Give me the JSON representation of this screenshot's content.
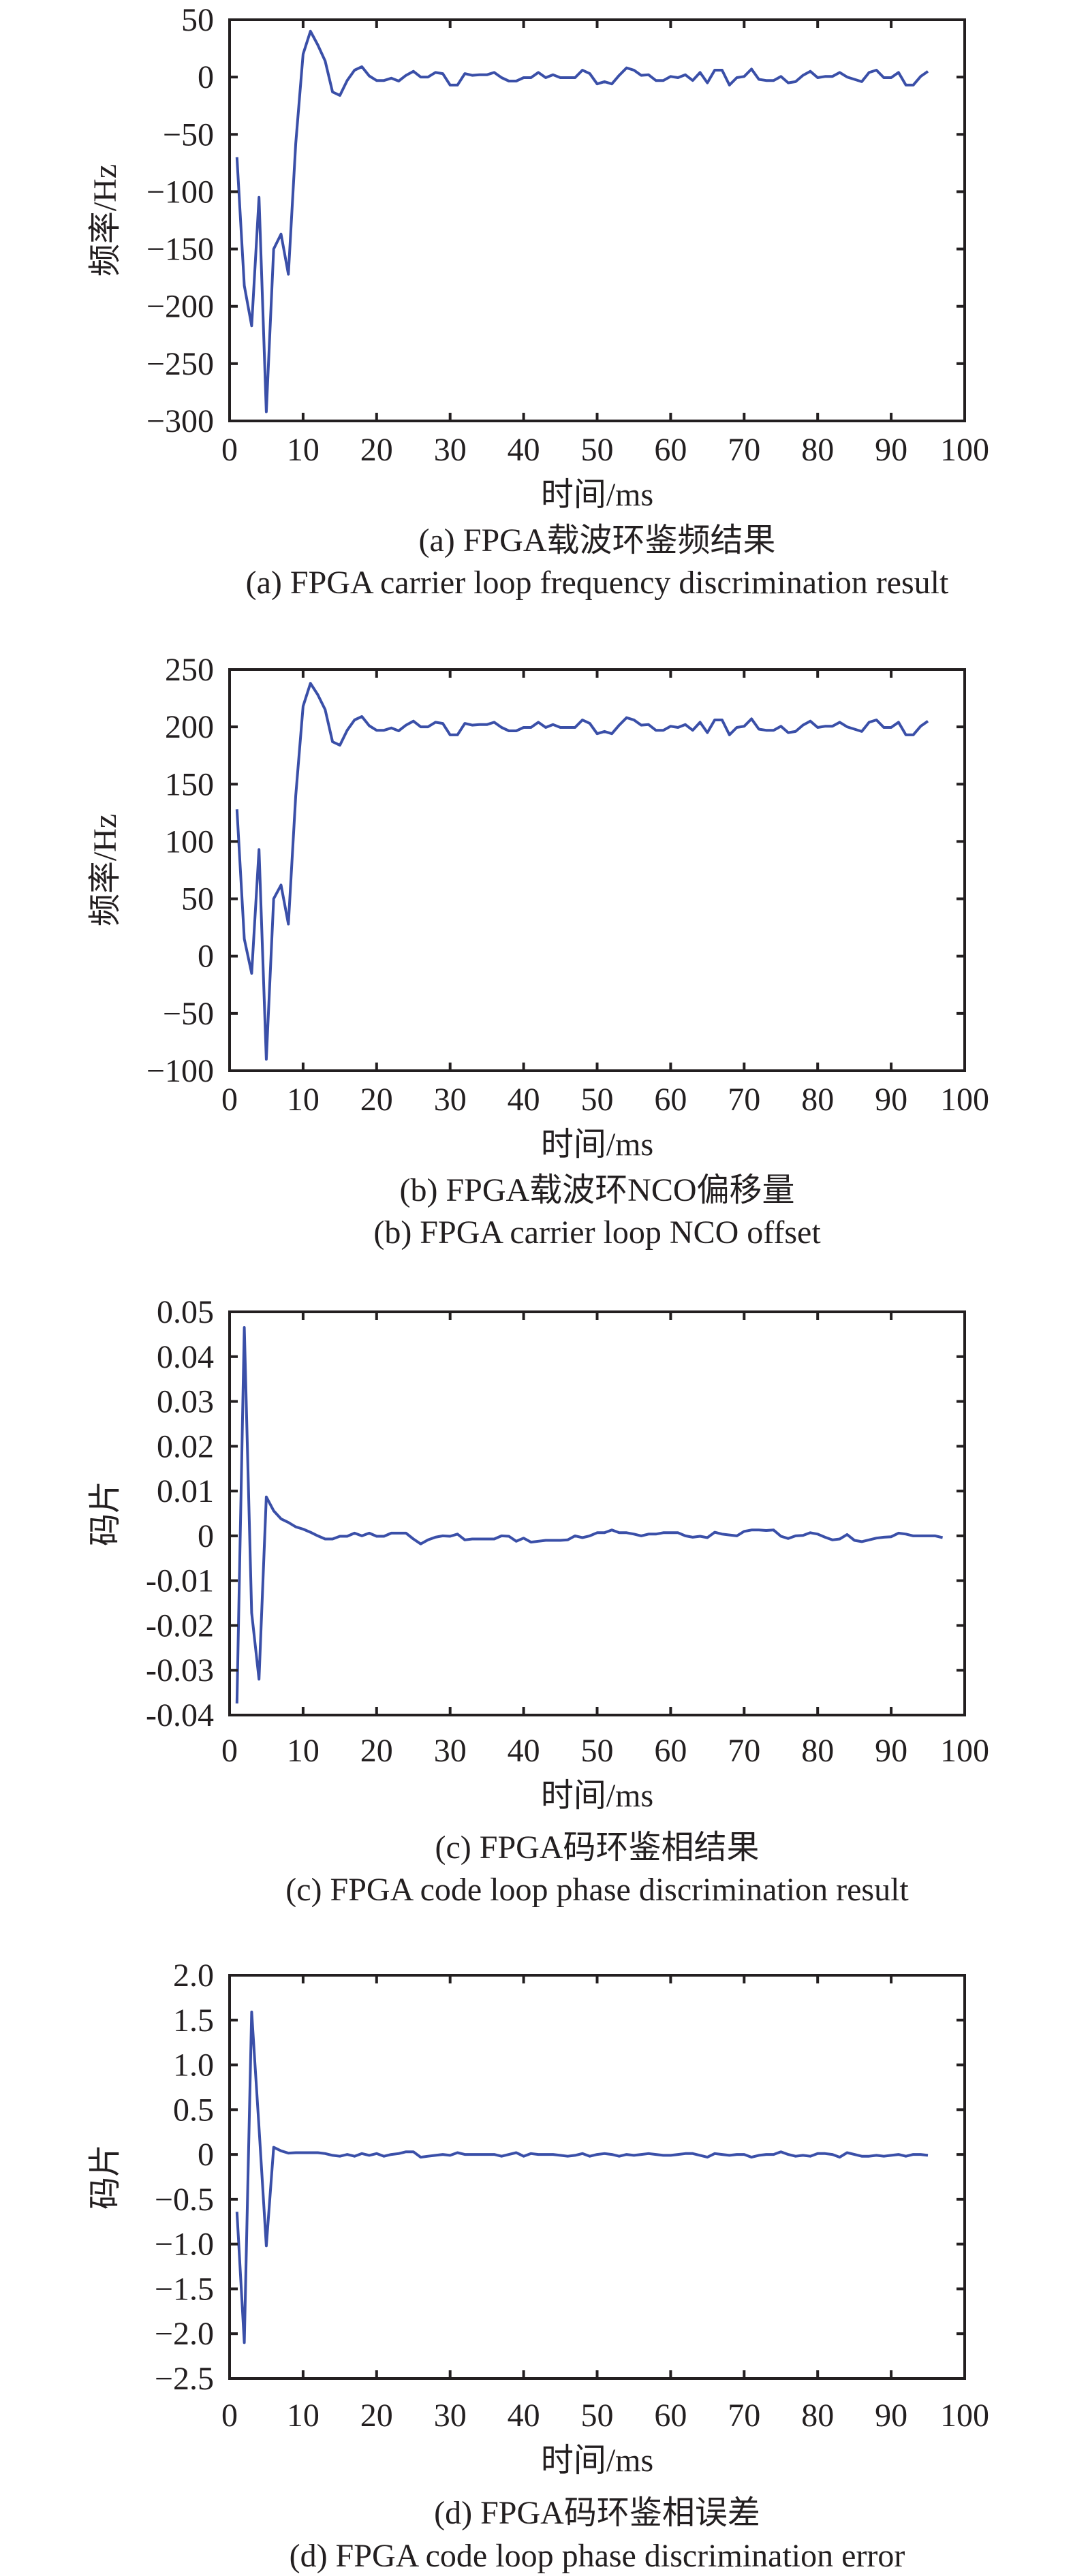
{
  "colors": {
    "line": "#3a4fa8",
    "axis": "#231f20"
  },
  "chart_data": [
    {
      "type": "line",
      "title": "(a) FPGA载波环鉴频结果",
      "title_en": "(a) FPGA carrier loop frequency discrimination result",
      "xlabel": "时间/ms",
      "ylabel": "频率/Hz",
      "xlim": [
        0,
        100
      ],
      "ylim": [
        -300,
        50
      ],
      "xticks": [
        "0",
        "10",
        "20",
        "30",
        "40",
        "50",
        "60",
        "70",
        "80",
        "90",
        "100"
      ],
      "yticks": [
        "50",
        "0",
        "−50",
        "−100",
        "−150",
        "−200",
        "−250",
        "−300"
      ],
      "ytick_values": [
        50,
        0,
        -50,
        -100,
        -150,
        -200,
        -250,
        -300
      ],
      "grid": false,
      "series": [
        {
          "name": "carrier loop frequency discrimination",
          "x_start": 1,
          "x_step": 1,
          "values": [
            -70,
            -182,
            -217,
            -105,
            -292,
            -150,
            -137,
            -172,
            -58,
            20,
            40,
            28,
            14,
            -13,
            -16,
            -3,
            6,
            9,
            1,
            -3,
            -3,
            -1,
            -3.5,
            1.5,
            5,
            0,
            0,
            4,
            3,
            -7,
            -7,
            3,
            1.5,
            2,
            2,
            4,
            -0.5,
            -3.5,
            -3.5,
            -0.5,
            -0.5,
            4,
            -0.5,
            2,
            -0.5,
            -0.5,
            -0.5,
            6,
            3,
            -6,
            -4,
            -6,
            1.5,
            8,
            6,
            1.5,
            2,
            -3,
            -3,
            0.5,
            -0.5,
            2,
            -3,
            4,
            -5,
            6,
            6,
            -7,
            -0.5,
            0.5,
            7,
            -2,
            -3,
            -3,
            0.5,
            -5,
            -4,
            1.5,
            5,
            -0.5,
            0.5,
            0.5,
            4,
            0,
            -2,
            -4,
            4,
            6,
            -0.5,
            -0.5,
            4,
            -7,
            -7,
            0.5,
            5
          ]
        }
      ]
    },
    {
      "type": "line",
      "title": "(b) FPGA载波环NCO偏移量",
      "title_en": "(b) FPGA carrier loop NCO offset",
      "xlabel": "时间/ms",
      "ylabel": "频率/Hz",
      "xlim": [
        0,
        100
      ],
      "ylim": [
        -100,
        250
      ],
      "xticks": [
        "0",
        "10",
        "20",
        "30",
        "40",
        "50",
        "60",
        "70",
        "80",
        "90",
        "100"
      ],
      "yticks": [
        "250",
        "200",
        "150",
        "100",
        "50",
        "0",
        "−50",
        "−100"
      ],
      "ytick_values": [
        250,
        200,
        150,
        100,
        50,
        0,
        -50,
        -100
      ],
      "grid": false,
      "series": [
        {
          "name": "carrier loop NCO offset",
          "x_start": 1,
          "x_step": 1,
          "values": [
            128,
            15,
            -15,
            93,
            -90,
            50,
            62,
            28,
            140,
            218,
            238,
            228,
            215,
            187,
            184,
            197,
            206,
            209,
            201,
            197,
            197,
            199,
            196.5,
            201.5,
            205,
            200,
            200,
            204,
            203,
            193,
            193,
            203,
            201.5,
            202,
            202,
            204,
            199.5,
            196.5,
            196.5,
            199.5,
            199.5,
            204,
            199.5,
            202,
            199.5,
            199.5,
            199.5,
            206,
            203,
            194,
            196,
            194,
            201.5,
            208,
            206,
            201.5,
            202,
            197,
            197,
            200.5,
            199.5,
            202,
            197,
            204,
            195,
            206,
            206,
            193,
            199.5,
            200.5,
            207,
            198,
            197,
            197,
            200.5,
            195,
            196,
            201.5,
            205,
            199.5,
            200.5,
            200.5,
            204,
            200,
            198,
            196,
            204,
            206,
            199.5,
            199.5,
            204,
            193,
            193,
            200.5,
            205
          ]
        }
      ]
    },
    {
      "type": "line",
      "title": "(c) FPGA码环鉴相结果",
      "title_en": "(c) FPGA code loop phase discrimination result",
      "xlabel": "时间/ms",
      "ylabel": "码片",
      "xlim": [
        0,
        100
      ],
      "ylim": [
        -0.04,
        0.05
      ],
      "xticks": [
        "0",
        "10",
        "20",
        "30",
        "40",
        "50",
        "60",
        "70",
        "80",
        "90",
        "100"
      ],
      "yticks": [
        "0.05",
        "0.04",
        "0.03",
        "0.02",
        "0.01",
        "0",
        "-0.01",
        "-0.02",
        "-0.03",
        "-0.04"
      ],
      "ytick_values": [
        0.05,
        0.04,
        0.03,
        0.02,
        0.01,
        0,
        -0.01,
        -0.02,
        -0.03,
        -0.04
      ],
      "grid": false,
      "series": [
        {
          "name": "code loop phase discrimination",
          "x_start": 1,
          "x_step": 1,
          "values": [
            -0.0374,
            0.0465,
            -0.0172,
            -0.032,
            0.0087,
            0.0056,
            0.0038,
            0.003,
            0.002,
            0.0015,
            0.0008,
            0,
            -0.0007,
            -0.0007,
            -0.0001,
            -0.0001,
            0.0006,
            0,
            0.0006,
            -0.0001,
            -0.0001,
            0.0006,
            0.0006,
            0.0006,
            -0.0007,
            -0.0018,
            -0.0009,
            -0.0003,
            0,
            -0.0001,
            0.0004,
            -0.0009,
            -0.0007,
            -0.0007,
            -0.0007,
            -0.0007,
            0,
            -0.0001,
            -0.0012,
            -0.0005,
            -0.0014,
            -0.0012,
            -0.001,
            -0.001,
            -0.001,
            -0.0009,
            0,
            -0.0004,
            0,
            0.0007,
            0.0007,
            0.0013,
            0.0007,
            0.0007,
            0.0004,
            0,
            0.0004,
            0.0004,
            0.0007,
            0.0007,
            0.0007,
            0,
            -0.0003,
            -0.0001,
            -0.0004,
            0.0008,
            0.0004,
            0.0002,
            0,
            0.001,
            0.0013,
            0.0013,
            0.0012,
            0.0013,
            -0.0001,
            -0.0006,
            0,
            0.0001,
            0.0007,
            0.0004,
            -0.0003,
            -0.0009,
            -0.0007,
            0.0003,
            -0.001,
            -0.0013,
            -0.0009,
            -0.0005,
            -0.0003,
            -0.0002,
            0.0006,
            0.0004,
            0,
            0,
            0,
            0,
            -0.0004
          ]
        }
      ]
    },
    {
      "type": "line",
      "title": "(d) FPGA码环鉴相误差",
      "title_en": "(d) FPGA code loop phase discrimination error",
      "xlabel": "时间/ms",
      "ylabel": "码片",
      "xlim": [
        0,
        100
      ],
      "ylim": [
        -2.5,
        2.0
      ],
      "xticks": [
        "0",
        "10",
        "20",
        "30",
        "40",
        "50",
        "60",
        "70",
        "80",
        "90",
        "100"
      ],
      "yticks": [
        "2.0",
        "1.5",
        "1.0",
        "0.5",
        "0",
        "−0.5",
        "−1.0",
        "−1.5",
        "−2.0",
        "−2.5"
      ],
      "ytick_values": [
        2.0,
        1.5,
        1.0,
        0.5,
        0,
        -0.5,
        -1.0,
        -1.5,
        -2.0,
        -2.5
      ],
      "grid": false,
      "series": [
        {
          "name": "code loop phase discrimination error",
          "x_start": 1,
          "x_step": 1,
          "values": [
            -0.64,
            -2.1,
            1.59,
            0.3,
            -1.02,
            0.08,
            0.04,
            0.015,
            0.02,
            0.02,
            0.02,
            0.02,
            0.01,
            -0.01,
            -0.02,
            0,
            -0.02,
            0.01,
            -0.01,
            0.01,
            -0.02,
            0,
            0.01,
            0.03,
            0.03,
            -0.03,
            -0.02,
            -0.01,
            0,
            -0.01,
            0.02,
            0,
            0,
            0,
            0,
            0,
            -0.02,
            0,
            0.02,
            -0.02,
            0.01,
            0,
            0,
            0,
            -0.01,
            -0.02,
            -0.01,
            0.01,
            -0.02,
            0,
            0.01,
            0,
            -0.02,
            0,
            -0.01,
            0,
            0.01,
            0,
            -0.01,
            -0.01,
            0,
            0.01,
            0.01,
            -0.01,
            -0.03,
            0.01,
            0,
            -0.01,
            0,
            0,
            -0.03,
            -0.01,
            0,
            0,
            0.03,
            0,
            -0.02,
            -0.01,
            -0.02,
            0.01,
            0.01,
            0,
            -0.03,
            0.02,
            0,
            -0.02,
            -0.02,
            -0.01,
            -0.02,
            -0.01,
            0,
            -0.02,
            0,
            0,
            -0.01
          ]
        }
      ]
    }
  ]
}
